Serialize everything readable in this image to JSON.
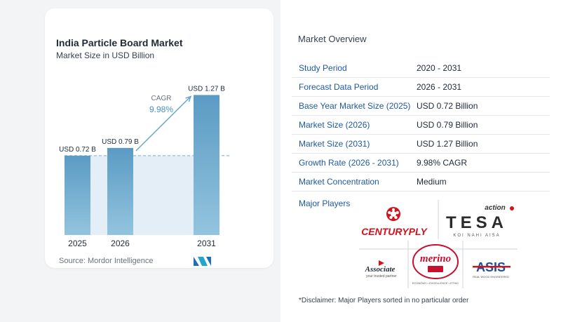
{
  "chart_card": {
    "title": "India Particle Board Market",
    "subtitle": "Market Size in USD Billion",
    "source": "Source:  Mordor Intelligence"
  },
  "chart_data": {
    "type": "bar",
    "title": "India Particle Board Market",
    "subtitle": "Market Size in USD Billion",
    "categories": [
      "2025",
      "2026",
      "2031"
    ],
    "values": [
      0.72,
      0.79,
      1.27
    ],
    "data_labels": [
      "USD 0.72 B",
      "USD 0.79 B",
      "USD 1.27 B"
    ],
    "ylim": [
      0,
      1.4
    ],
    "reference_line": 0.72,
    "cagr_label": "CAGR",
    "cagr_value": "9.98%",
    "bar_color": "#5b9bc4",
    "bar_color_light": "#93c4de",
    "shade_color": "#e3eef7",
    "grid": false,
    "legend": "none"
  },
  "overview": {
    "title": "Market Overview",
    "rows": [
      {
        "key": "Study Period",
        "value": "2020 - 2031"
      },
      {
        "key": "Forecast Data Period",
        "value": "2026 - 2031"
      },
      {
        "key": "Base Year Market Size (2025)",
        "value": "USD 0.72 Billion"
      },
      {
        "key": "Market Size (2026)",
        "value": "USD 0.79 Billion"
      },
      {
        "key": "Market Size (2031)",
        "value": "USD 1.27 Billion"
      },
      {
        "key": "Growth Rate (2026 - 2031)",
        "value": "9.98% CAGR"
      },
      {
        "key": "Market Concentration",
        "value": "Medium"
      }
    ],
    "players_label": "Major Players",
    "players": {
      "centuryply": "CENTURYPLY",
      "tesa_action": "action",
      "tesa": "TESA",
      "tesa_tag": "KOI NAHI AISA",
      "associate": "Associate",
      "associate_tag": "your trusted partner",
      "merino": "merino",
      "merino_tag": "ECONOMY • EXCELLENCE • ETHIC",
      "asis": "ASIS",
      "asis_tag": "REAL WOOD ENGINEERED"
    },
    "disclaimer": "*Disclaimer: Major Players sorted in no particular order"
  },
  "colors": {
    "accent_blue": "#1e5aa0",
    "bar": "#5b9bc4",
    "centuryply_red": "#d3121b",
    "merino_red": "#c8102e",
    "asis_blue": "#1a4f9c"
  }
}
